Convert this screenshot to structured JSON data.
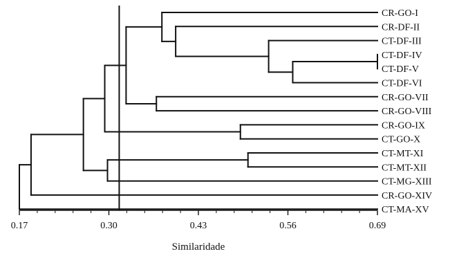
{
  "chart_data": {
    "type": "dendrogram",
    "xlabel": "Similaridade",
    "xlim": [
      0.17,
      0.69
    ],
    "xticks": [
      {
        "value": 0.17,
        "label": "0.17"
      },
      {
        "value": 0.3,
        "label": "0.30"
      },
      {
        "value": 0.43,
        "label": "0.43"
      },
      {
        "value": 0.56,
        "label": "0.56"
      },
      {
        "value": 0.69,
        "label": "0.69"
      }
    ],
    "cutoff_similarity": 0.315,
    "leaves": [
      "CR-GO-I",
      "CR-DF-II",
      "CT-DF-III",
      "CT-DF-IV",
      "CT-DF-V",
      "CT-DF-VI",
      "CR-GO-VII",
      "CR-GO-VIII",
      "CR-GO-IX",
      "CT-GO-X",
      "CT-MT-XI",
      "CT-MT-XII",
      "CT-MG-XIII",
      "CR-GO-XIV",
      "CT-MA-XV"
    ],
    "merges": [
      {
        "a": "L3",
        "b": "L4",
        "similarity": 0.69
      },
      {
        "a": "L5",
        "b": "M0",
        "similarity": 0.567
      },
      {
        "a": "L2",
        "b": "M1",
        "similarity": 0.532
      },
      {
        "a": "L1",
        "b": "M2",
        "similarity": 0.397
      },
      {
        "a": "L0",
        "b": "M3",
        "similarity": 0.377
      },
      {
        "a": "L6",
        "b": "L7",
        "similarity": 0.369
      },
      {
        "a": "M4",
        "b": "M5",
        "similarity": 0.325
      },
      {
        "a": "L8",
        "b": "L9",
        "similarity": 0.491
      },
      {
        "a": "M6",
        "b": "M7",
        "similarity": 0.294
      },
      {
        "a": "L10",
        "b": "L11",
        "similarity": 0.502
      },
      {
        "a": "M9",
        "b": "L12",
        "similarity": 0.298
      },
      {
        "a": "M8",
        "b": "M10",
        "similarity": 0.263
      },
      {
        "a": "M11",
        "b": "L13",
        "similarity": 0.187
      },
      {
        "a": "M12",
        "b": "L14",
        "similarity": 0.17
      }
    ]
  }
}
